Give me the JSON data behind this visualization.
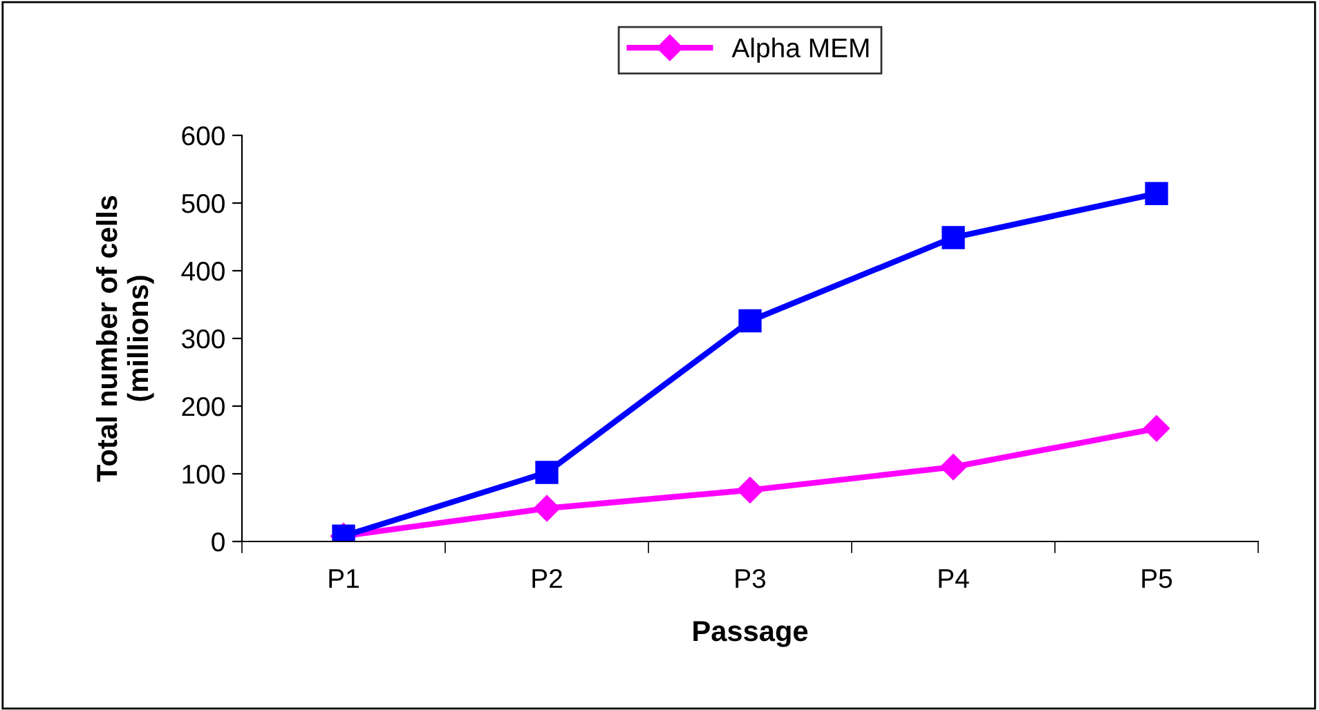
{
  "chart_data": {
    "type": "line",
    "xlabel": "Passage",
    "ylabel": "Total number of cells\n(millions)",
    "categories": [
      "P1",
      "P2",
      "P3",
      "P4",
      "P5"
    ],
    "series": [
      {
        "name": "Alpha MEM",
        "color": "#ff00ff",
        "marker": "diamond",
        "values": [
          8,
          49,
          76,
          110,
          167
        ]
      },
      {
        "color": "#0000ff",
        "marker": "square",
        "values": [
          8,
          102,
          326,
          449,
          514
        ]
      }
    ],
    "ylim": [
      0,
      600
    ],
    "yticks": [
      0,
      100,
      200,
      300,
      400,
      500,
      600
    ],
    "grid": false,
    "legend": "top",
    "line_style": "solid"
  }
}
